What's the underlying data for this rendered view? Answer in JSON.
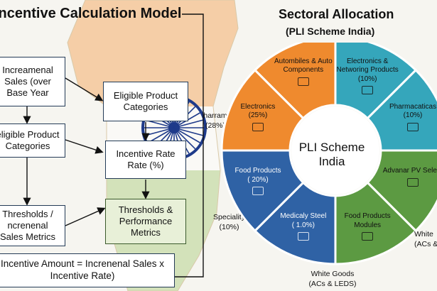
{
  "left": {
    "title": "Incentive Calculation Model",
    "boxes": {
      "incremental_sales": "Increamenal Sales (over Base Year",
      "eligible_categories_left": "eligible Product Categories",
      "thresholds_left": "Thresholds / ncrenenal Sales Metrics",
      "eligible_categories_right": "Eligible Product Categories",
      "incentive_rate": "Incentive Rate Rate (%)",
      "thresholds_right": "Thresholds & Performance Metrics",
      "formula": "Incentive Amount = Increnenal Sales x Incentive Rate)"
    },
    "side_labels": {
      "pharma": "harram (28%)",
      "speciality": "Speciality (10%)"
    }
  },
  "right": {
    "title": "Sectoral Allocation",
    "subtitle": "(PLI Scheme India)",
    "center_label": "PLI Scheme India",
    "segments": [
      {
        "label": "Autombiles & Auto Components",
        "value": "",
        "color": "#ef8a2e"
      },
      {
        "label": "Electronics & Networing Products",
        "value": "(10%)",
        "color": "#35a6bb"
      },
      {
        "label": "Pharmacaticas",
        "value": "(10%)",
        "color": "#35a6bb"
      },
      {
        "label": "Advanar PV Seles)",
        "value": "",
        "color": "#5c9a42"
      },
      {
        "label": "Food Products Modules",
        "value": "",
        "color": "#5c9a42"
      },
      {
        "label": "Medicaly Steel",
        "value": "( 1.0%)",
        "color": "#2f62a5"
      },
      {
        "label": "Food Products",
        "value": "( 20%)",
        "color": "#2f62a5"
      },
      {
        "label": "Electronics",
        "value": "(25%)",
        "color": "#ef8a2e"
      }
    ],
    "outer_labels": {
      "white_goods": "White Goods (ACs & LEDS)",
      "white_right": "White (ACs &"
    },
    "icons": [
      "car-icon",
      "circuit-icon",
      "pill-bottle-icon",
      "solar-panel-icon",
      "flask-icon",
      "steel-icon",
      "food-icon",
      "calculator-icon"
    ]
  },
  "colors": {
    "orange": "#ef8a2e",
    "teal": "#35a6bb",
    "green": "#5c9a42",
    "blue": "#2f62a5",
    "saffron_bg": "#f4c79a",
    "green_bg": "#cfe0b4",
    "chakra": "#1e3a8a"
  }
}
